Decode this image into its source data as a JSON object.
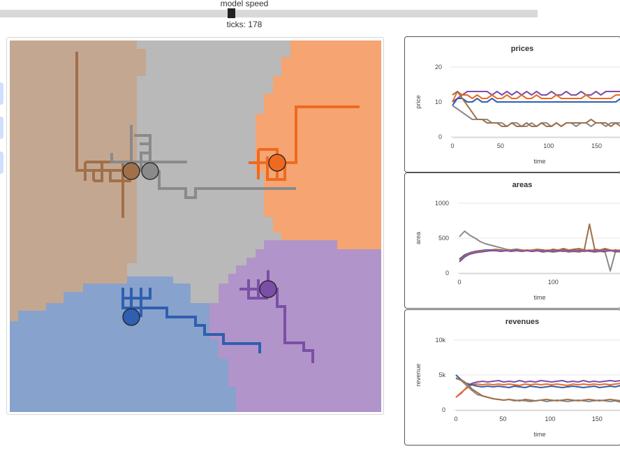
{
  "controls": {
    "model_speed_label": "model speed",
    "speed_fraction": 0.43,
    "ticks_text": "ticks: 178"
  },
  "colors": {
    "brown": "#a0704a",
    "gray": "#8a8a8a",
    "orange": "#ee6a1f",
    "blue": "#2f5fb0",
    "purple": "#7b4fa6",
    "region_brown": "#c4a791",
    "region_gray": "#b9b9b9",
    "region_orange": "#f5a472",
    "region_blue": "#87a2cc",
    "region_purple": "#b194c9"
  },
  "chart_data": [
    {
      "type": "line",
      "title": "prices",
      "ylabel": "price",
      "xlabel": "time",
      "ylim": [
        0,
        20
      ],
      "y_ticks": [
        "0",
        "10",
        "20"
      ],
      "x_ticks": [
        "0",
        "50",
        "100",
        "150"
      ],
      "series": [
        {
          "color": "#7b4fa6",
          "values": [
            10,
            11,
            12,
            13,
            13,
            13,
            13,
            13,
            12,
            13,
            12,
            13,
            12,
            13,
            12,
            13,
            12,
            13,
            12,
            12,
            13,
            12,
            12,
            13,
            12,
            12,
            13,
            12,
            12,
            13,
            12,
            13,
            13,
            13,
            13
          ]
        },
        {
          "color": "#ee6a1f",
          "values": [
            10,
            13,
            12,
            12,
            11,
            12,
            11,
            11,
            12,
            11,
            11,
            12,
            11,
            11,
            12,
            11,
            11,
            12,
            11,
            11,
            11,
            12,
            11,
            11,
            11,
            11,
            11,
            12,
            11,
            11,
            11,
            11,
            11,
            12,
            12
          ]
        },
        {
          "color": "#2f5fb0",
          "values": [
            9,
            11,
            11,
            10,
            10,
            11,
            10,
            10,
            11,
            10,
            10,
            10,
            10,
            10,
            10,
            10,
            10,
            10,
            10,
            10,
            10,
            10,
            10,
            10,
            10,
            10,
            10,
            10,
            10,
            10,
            10,
            10,
            10,
            10,
            11
          ]
        },
        {
          "color": "#8a8a8a",
          "values": [
            9,
            8,
            7,
            6,
            5,
            5,
            5,
            5,
            4,
            4,
            4,
            3,
            4,
            4,
            3,
            3,
            4,
            3,
            4,
            4,
            3,
            4,
            3,
            4,
            4,
            3,
            4,
            4,
            3,
            4,
            4,
            3,
            4,
            4,
            4
          ]
        },
        {
          "color": "#a0704a",
          "values": [
            12,
            13,
            11,
            9,
            7,
            5,
            5,
            4,
            4,
            4,
            3,
            3,
            4,
            3,
            3,
            4,
            3,
            3,
            4,
            3,
            3,
            4,
            3,
            4,
            4,
            4,
            4,
            4,
            5,
            4,
            4,
            4,
            3,
            4,
            3
          ]
        }
      ]
    },
    {
      "type": "line",
      "title": "areas",
      "ylabel": "area",
      "xlabel": "time",
      "ylim": [
        0,
        1000
      ],
      "y_ticks": [
        "0",
        "500",
        "1000"
      ],
      "x_ticks": [
        "0",
        "100"
      ],
      "series": [
        {
          "color": "#8a8a8a",
          "values": [
            520,
            600,
            540,
            500,
            450,
            420,
            400,
            380,
            360,
            340,
            330,
            320,
            330,
            320,
            310,
            320,
            300,
            310,
            300,
            310,
            320,
            300,
            310,
            300,
            320,
            310,
            300,
            310,
            300,
            30,
            310,
            300
          ]
        },
        {
          "color": "#a0704a",
          "values": [
            200,
            250,
            290,
            300,
            310,
            320,
            330,
            340,
            330,
            320,
            330,
            340,
            330,
            320,
            330,
            340,
            330,
            320,
            340,
            330,
            350,
            330,
            340,
            350,
            330,
            700,
            340,
            330,
            350,
            330,
            300,
            320
          ]
        },
        {
          "color": "#2f5fb0",
          "values": [
            200,
            260,
            290,
            310,
            320,
            330,
            330,
            320,
            330,
            320,
            330,
            340,
            320,
            330,
            320,
            330,
            330,
            320,
            330,
            320,
            330,
            320,
            330,
            320,
            330,
            320,
            330,
            320,
            330,
            320,
            330,
            320
          ]
        },
        {
          "color": "#ee6a1f",
          "values": [
            180,
            240,
            280,
            300,
            310,
            320,
            320,
            330,
            320,
            330,
            320,
            330,
            320,
            330,
            320,
            330,
            320,
            330,
            320,
            330,
            320,
            330,
            320,
            330,
            320,
            330,
            320,
            330,
            320,
            330,
            320,
            330
          ]
        },
        {
          "color": "#7b4fa6",
          "values": [
            160,
            230,
            270,
            290,
            300,
            310,
            320,
            320,
            310,
            320,
            310,
            320,
            310,
            320,
            310,
            320,
            310,
            320,
            310,
            320,
            310,
            320,
            310,
            320,
            310,
            320,
            310,
            320,
            310,
            320,
            310,
            320
          ]
        }
      ]
    },
    {
      "type": "line",
      "title": "revenues",
      "ylabel": "revenue",
      "xlabel": "time",
      "ylim": [
        0,
        10000
      ],
      "y_ticks": [
        "0",
        "5k",
        "10k"
      ],
      "x_ticks": [
        "0",
        "50",
        "100",
        "150"
      ],
      "series": [
        {
          "color": "#7b4fa6",
          "values": [
            1800,
            2400,
            3200,
            3800,
            4000,
            4100,
            4000,
            4100,
            4200,
            4000,
            4100,
            4000,
            4200,
            4000,
            4100,
            4000,
            4200,
            4100,
            4000,
            4100,
            4200,
            4000,
            4100,
            4000,
            4200,
            4000,
            4100,
            4000,
            4100,
            4200,
            4100,
            4200
          ]
        },
        {
          "color": "#ee6a1f",
          "values": [
            1800,
            2500,
            3100,
            3600,
            3700,
            3600,
            3700,
            3600,
            3700,
            3600,
            3700,
            3600,
            3500,
            3700,
            3600,
            3700,
            3600,
            3700,
            3600,
            3700,
            3600,
            3500,
            3700,
            3600,
            3700,
            3600,
            3700,
            3600,
            3700,
            3600,
            3700,
            3800
          ]
        },
        {
          "color": "#2f5fb0",
          "values": [
            5000,
            4300,
            3800,
            3600,
            3400,
            3300,
            3400,
            3300,
            3400,
            3300,
            3200,
            3400,
            3300,
            3200,
            3400,
            3300,
            3200,
            3300,
            3400,
            3300,
            3200,
            3300,
            3400,
            3300,
            3200,
            3300,
            3400,
            3200,
            3300,
            3400,
            3300,
            3500
          ]
        },
        {
          "color": "#8a8a8a",
          "values": [
            4600,
            4200,
            3500,
            2800,
            2200,
            2000,
            1800,
            1600,
            1500,
            1400,
            1500,
            1300,
            1400,
            1300,
            1200,
            1300,
            1400,
            1200,
            1300,
            1400,
            1300,
            1200,
            1300,
            1400,
            1300,
            1200,
            1300,
            1400,
            1300,
            1200,
            1300,
            1100
          ]
        },
        {
          "color": "#a0704a",
          "values": [
            4500,
            4300,
            3800,
            3000,
            2500,
            2000,
            1800,
            1600,
            1500,
            1400,
            1500,
            1400,
            1300,
            1500,
            1400,
            1300,
            1400,
            1500,
            1400,
            1300,
            1400,
            1500,
            1400,
            1300,
            1400,
            1500,
            1400,
            1300,
            1400,
            1500,
            1400,
            1300
          ]
        }
      ]
    }
  ]
}
